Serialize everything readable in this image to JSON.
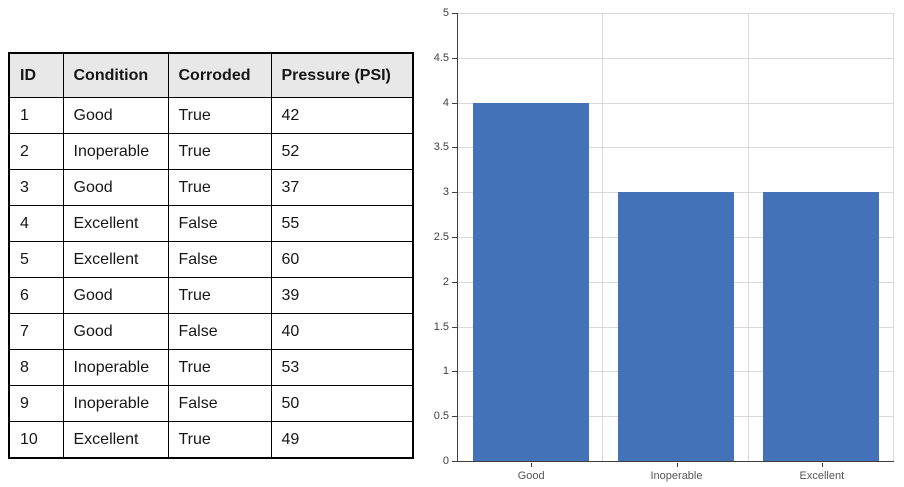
{
  "table": {
    "headers": [
      "ID",
      "Condition",
      "Corroded",
      "Pressure (PSI)"
    ],
    "rows": [
      [
        "1",
        "Good",
        "True",
        "42"
      ],
      [
        "2",
        "Inoperable",
        "True",
        "52"
      ],
      [
        "3",
        "Good",
        "True",
        "37"
      ],
      [
        "4",
        "Excellent",
        "False",
        "55"
      ],
      [
        "5",
        "Excellent",
        "False",
        "60"
      ],
      [
        "6",
        "Good",
        "True",
        "39"
      ],
      [
        "7",
        "Good",
        "False",
        "40"
      ],
      [
        "8",
        "Inoperable",
        "True",
        "53"
      ],
      [
        "9",
        "Inoperable",
        "False",
        "50"
      ],
      [
        "10",
        "Excellent",
        "True",
        "49"
      ]
    ]
  },
  "chart_data": {
    "type": "bar",
    "categories": [
      "Good",
      "Inoperable",
      "Excellent"
    ],
    "values": [
      4,
      3,
      3
    ],
    "title": "",
    "xlabel": "",
    "ylabel": "",
    "ylim": [
      0,
      5
    ],
    "yticks": [
      0,
      0.5,
      1,
      1.5,
      2,
      2.5,
      3,
      3.5,
      4,
      4.5,
      5
    ],
    "grid": true,
    "legend_position": "none",
    "bar_color": "#4372B9",
    "gridline_color": "#D9D9D9",
    "axis_color": "#3F3F3F",
    "y_tick_label_color": "#404040",
    "x_tick_label_color": "#555555",
    "bar_width_fraction": 0.8
  },
  "colors": {
    "background": "#FFFFFF",
    "table_header_bg": "#E8E8E8",
    "table_border": "#000000"
  }
}
